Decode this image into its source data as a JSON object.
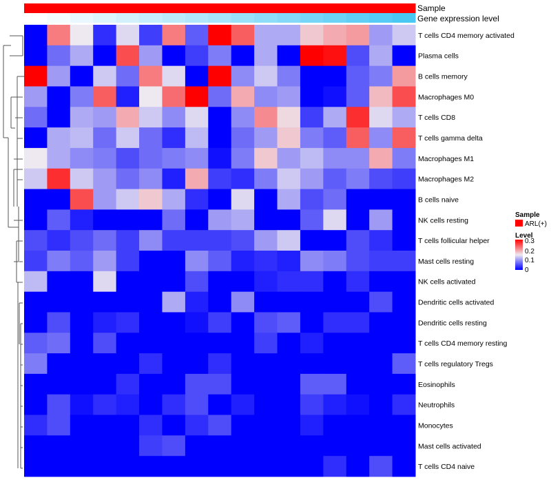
{
  "chart_data": {
    "type": "heatmap",
    "title": "",
    "annotations": {
      "sample_label": "Sample",
      "gene_label": "Gene expression level"
    },
    "sample_color": "#FF0000",
    "gene_color_low": "#FFFFFF",
    "gene_color_high": "#4AC8F4",
    "color_low": "#0000FF",
    "color_mid": "#EEE8F0",
    "color_high": "#FF0000",
    "value_range": [
      0,
      0.3
    ],
    "legend": {
      "sample_title": "Sample",
      "sample_entry": "ARL(+)",
      "level_title": "Level",
      "ticks": [
        "0.3",
        "0.2",
        "0.1",
        "0"
      ],
      "placement": "right"
    },
    "rows": [
      "T cells CD4 memory activated",
      "Plasma cells",
      "B cells memory",
      "Macrophages M0",
      "T cells CD8",
      "T cells gamma delta",
      "Macrophages M1",
      "Macrophages M2",
      "B cells naive",
      "NK cells resting",
      "T cells follicular helper",
      "Mast cells resting",
      "NK cells activated",
      "Dendritic cells activated",
      "Dendritic cells resting",
      "T cells CD4 memory resting",
      "T cells regulatory  Tregs",
      "Eosinophils",
      "Neutrophils",
      "Monocytes",
      "Mast cells activated",
      "T cells CD4 naive"
    ],
    "values": [
      [
        0,
        0.22,
        0.15,
        0.03,
        0.14,
        0.04,
        0.22,
        0.06,
        0.3,
        0.24,
        0.11,
        0.11,
        0.17,
        0.19,
        0.2,
        0.1,
        0.13
      ],
      [
        0,
        0.07,
        0.11,
        0,
        0.25,
        0.1,
        0,
        0.04,
        0.08,
        0,
        0.11,
        0,
        0.3,
        0.29,
        0.05,
        0.11,
        0
      ],
      [
        0.3,
        0.1,
        0,
        0.13,
        0.07,
        0.22,
        0.14,
        0,
        0.3,
        0.09,
        0.13,
        0.08,
        0,
        0,
        0.06,
        0.08,
        0.2
      ],
      [
        0.1,
        0,
        0.08,
        0.24,
        0.02,
        0.15,
        0.23,
        0.3,
        0.07,
        0.19,
        0.09,
        0.1,
        0,
        0.01,
        0.06,
        0.18,
        0.25
      ],
      [
        0.07,
        0,
        0.11,
        0.1,
        0.19,
        0.13,
        0.09,
        0.14,
        0,
        0.09,
        0.21,
        0.16,
        0.04,
        0.11,
        0.27,
        0.14,
        0.11
      ],
      [
        0,
        0.11,
        0.12,
        0.07,
        0.13,
        0.07,
        0.03,
        0.12,
        0,
        0.07,
        0.1,
        0.17,
        0.08,
        0.06,
        0.24,
        0.09,
        0.24
      ],
      [
        0.15,
        0.11,
        0.09,
        0.08,
        0.05,
        0.07,
        0.08,
        0.09,
        0.01,
        0.08,
        0.17,
        0.1,
        0.12,
        0.09,
        0.09,
        0.19,
        0.08
      ],
      [
        0.13,
        0.27,
        0.13,
        0.1,
        0.07,
        0.09,
        0.02,
        0.19,
        0.04,
        0.03,
        0.08,
        0.13,
        0.1,
        0.06,
        0.08,
        0.05,
        0.04
      ],
      [
        0,
        0,
        0.25,
        0.1,
        0.13,
        0.17,
        0.11,
        0.03,
        0,
        0.14,
        0,
        0.11,
        0.05,
        0.07,
        0,
        0,
        0
      ],
      [
        0,
        0.06,
        0.02,
        0,
        0,
        0,
        0.07,
        0,
        0.1,
        0.11,
        0,
        0,
        0.06,
        0.14,
        0,
        0.1,
        0
      ],
      [
        0.05,
        0.03,
        0.05,
        0.07,
        0.04,
        0.09,
        0.04,
        0.04,
        0.04,
        0.05,
        0.1,
        0.13,
        0,
        0,
        0.05,
        0.03,
        0
      ],
      [
        0.04,
        0.08,
        0.06,
        0.1,
        0.04,
        0,
        0,
        0.09,
        0.06,
        0.02,
        0.03,
        0.02,
        0.09,
        0.08,
        0.05,
        0.04,
        0.04
      ],
      [
        0.12,
        0,
        0,
        0.14,
        0,
        0,
        0,
        0.05,
        0,
        0,
        0.02,
        0.03,
        0.03,
        0,
        0.03,
        0,
        0
      ],
      [
        0,
        0,
        0,
        0,
        0,
        0,
        0.11,
        0.02,
        0,
        0.09,
        0,
        0,
        0,
        0,
        0,
        0.05,
        0
      ],
      [
        0,
        0.05,
        0,
        0.02,
        0.03,
        0,
        0,
        0.01,
        0.04,
        0,
        0.05,
        0.06,
        0,
        0.03,
        0.03,
        0,
        0
      ],
      [
        0.06,
        0.07,
        0,
        0.05,
        0,
        0,
        0,
        0,
        0,
        0,
        0.04,
        0,
        0.02,
        0,
        0,
        0,
        0
      ],
      [
        0.08,
        0,
        0,
        0,
        0,
        0.03,
        0,
        0,
        0.03,
        0,
        0,
        0,
        0,
        0,
        0,
        0,
        0.06
      ],
      [
        0,
        0,
        0,
        0,
        0.03,
        0,
        0,
        0.05,
        0.05,
        0,
        0,
        0,
        0.06,
        0.06,
        0,
        0,
        0
      ],
      [
        0,
        0.05,
        0.01,
        0.03,
        0.02,
        0,
        0.03,
        0.05,
        0,
        0.02,
        0,
        0,
        0.04,
        0.02,
        0.01,
        0,
        0.03
      ],
      [
        0.03,
        0.05,
        0,
        0,
        0,
        0.03,
        0,
        0.03,
        0.05,
        0,
        0,
        0,
        0.02,
        0,
        0,
        0,
        0
      ],
      [
        0,
        0,
        0,
        0,
        0,
        0.04,
        0.05,
        0,
        0,
        0,
        0,
        0,
        0,
        0,
        0,
        0,
        0
      ],
      [
        0,
        0,
        0,
        0,
        0,
        0,
        0,
        0,
        0,
        0,
        0,
        0,
        0,
        0.03,
        0,
        0.05,
        0
      ]
    ]
  }
}
